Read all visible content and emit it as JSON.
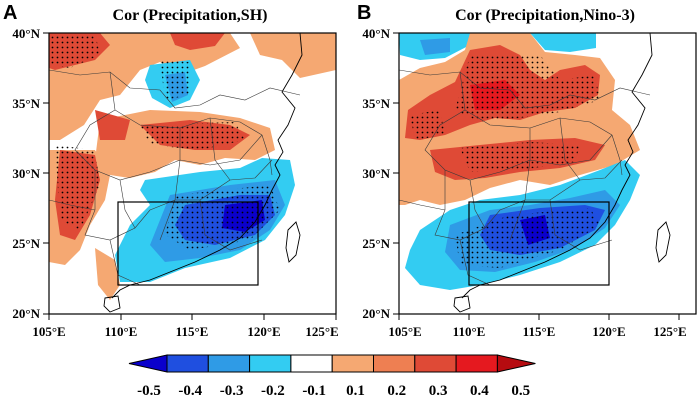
{
  "panels": [
    {
      "letter": "A",
      "title": "Cor (Precipitation,SH)",
      "x_ticks": [
        "105°E",
        "110°E",
        "115°E",
        "120°E",
        "125°E"
      ],
      "y_ticks": [
        "40°N",
        "35°N",
        "30°N",
        "25°N",
        "20°N"
      ]
    },
    {
      "letter": "B",
      "title": "Cor (Precipitation,Nino-3)",
      "x_ticks": [
        "105°E",
        "110°E",
        "115°E",
        "120°E",
        "125°E"
      ],
      "y_ticks": [
        "40°N",
        "35°N",
        "30°N",
        "25°N",
        "20°N"
      ]
    }
  ],
  "map_extent": {
    "lon": [
      105,
      125
    ],
    "lat": [
      20,
      40
    ]
  },
  "study_box": {
    "lon": [
      110,
      120
    ],
    "lat": [
      22,
      28
    ]
  },
  "colorbar": {
    "labels": [
      "-0.5",
      "-0.4",
      "-0.3",
      "-0.2",
      "-0.1",
      "0.1",
      "0.2",
      "0.3",
      "0.4",
      "0.5"
    ],
    "colors": [
      "#0a00cc",
      "#1f4fe0",
      "#2f9be6",
      "#33ccf2",
      "#ffffff",
      "#f5a872",
      "#ee7f52",
      "#df4a36",
      "#e5191f",
      "#b60b10"
    ]
  }
}
